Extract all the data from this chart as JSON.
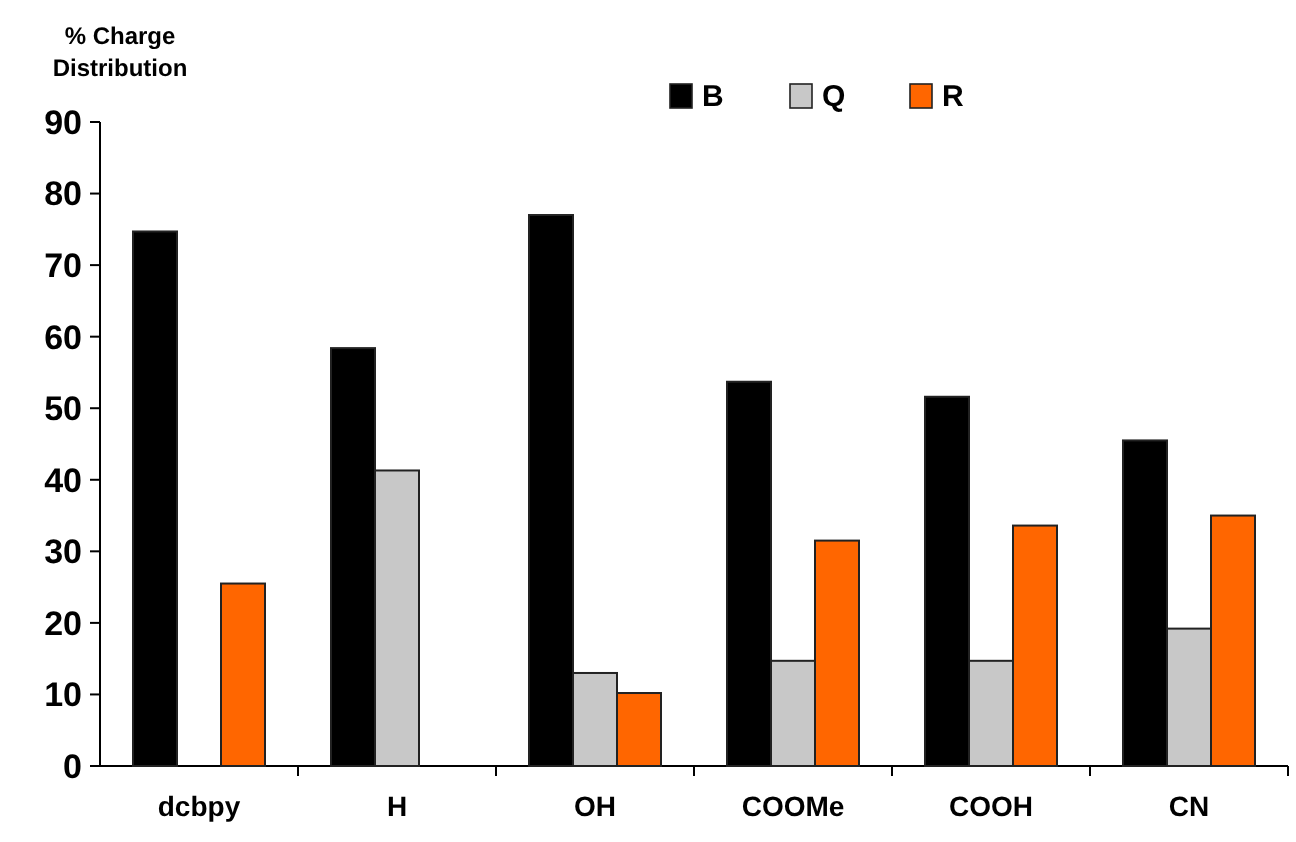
{
  "chart_data": {
    "type": "bar",
    "ylabel": "% Charge Distribution",
    "categories": [
      "dcbpy",
      "H",
      "OH",
      "COOMe",
      "COOH",
      "CN"
    ],
    "series": [
      {
        "name": "B",
        "color": "#000000",
        "values": [
          74.7,
          58.4,
          77,
          53.7,
          51.6,
          45.5
        ]
      },
      {
        "name": "Q",
        "color": "#c8c8c8",
        "values": [
          null,
          41.3,
          13,
          14.7,
          14.7,
          19.2
        ]
      },
      {
        "name": "R",
        "color": "#ff6600",
        "values": [
          25.5,
          null,
          10.2,
          31.5,
          33.6,
          35
        ]
      }
    ],
    "ylim": [
      0,
      90
    ],
    "yticks": [
      0,
      10,
      20,
      30,
      40,
      50,
      60,
      70,
      80,
      90
    ],
    "legend": "top right"
  }
}
